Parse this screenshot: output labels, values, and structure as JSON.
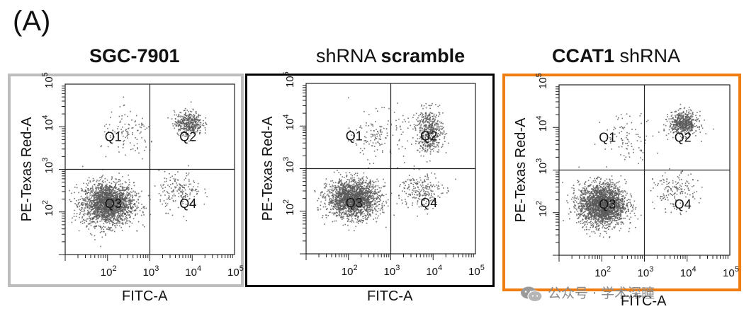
{
  "figure_label": "(A)",
  "titles": [
    {
      "bold": "SGC-7901",
      "normal": ""
    },
    {
      "bold": "scramble",
      "normal": "shRNA "
    },
    {
      "bold": "CCAT1",
      "normal": " shRNA"
    }
  ],
  "watermark": "公众号 · 学术深瞳",
  "colors": {
    "panel1_border": "#bdbdbd",
    "panel2_border": "#000000",
    "panel3_border": "#f07d12",
    "dots": "#5a5a5a"
  },
  "chart_data": [
    {
      "type": "scatter",
      "title": "SGC-7901",
      "xlabel": "FITC-A",
      "ylabel": "PE-Texas Red-A",
      "xscale": "log",
      "yscale": "log",
      "xlim": [
        10,
        100000
      ],
      "ylim": [
        10,
        100000
      ],
      "xticks": [
        "10^2",
        "10^3",
        "10^4",
        "10^5"
      ],
      "yticks": [
        "10^2",
        "10^3",
        "10^4",
        "10^5"
      ],
      "gate": {
        "x": 1000,
        "y": 1000
      },
      "quadrants": [
        "Q1",
        "Q2",
        "Q3",
        "Q4"
      ],
      "populations": [
        {
          "quadrant": "Q3",
          "center_log": [
            2.0,
            2.2
          ],
          "spread_log": [
            0.55,
            0.45
          ],
          "n": 2200
        },
        {
          "quadrant": "Q2",
          "center_log": [
            3.9,
            4.1
          ],
          "spread_log": [
            0.3,
            0.25
          ],
          "n": 420
        },
        {
          "quadrant": "Q4",
          "center_log": [
            3.7,
            2.5
          ],
          "spread_log": [
            0.45,
            0.4
          ],
          "n": 180
        },
        {
          "quadrant": "Q1",
          "center_log": [
            2.5,
            3.8
          ],
          "spread_log": [
            0.6,
            0.5
          ],
          "n": 110
        }
      ]
    },
    {
      "type": "scatter",
      "title": "shRNA scramble",
      "xlabel": "FITC-A",
      "ylabel": "PE-Texas Red-A",
      "xscale": "log",
      "yscale": "log",
      "xlim": [
        10,
        100000
      ],
      "ylim": [
        10,
        100000
      ],
      "xticks": [
        "10^2",
        "10^3",
        "10^4",
        "10^5"
      ],
      "yticks": [
        "10^2",
        "10^3",
        "10^4",
        "10^5"
      ],
      "gate": {
        "x": 1000,
        "y": 1000
      },
      "quadrants": [
        "Q1",
        "Q2",
        "Q3",
        "Q4"
      ],
      "populations": [
        {
          "quadrant": "Q3",
          "center_log": [
            2.1,
            2.3
          ],
          "spread_log": [
            0.55,
            0.4
          ],
          "n": 2000
        },
        {
          "quadrant": "Q2",
          "center_log": [
            3.9,
            3.9
          ],
          "spread_log": [
            0.3,
            0.45
          ],
          "n": 520
        },
        {
          "quadrant": "Q4",
          "center_log": [
            3.7,
            2.5
          ],
          "spread_log": [
            0.45,
            0.4
          ],
          "n": 220
        },
        {
          "quadrant": "Q1",
          "center_log": [
            2.7,
            3.8
          ],
          "spread_log": [
            0.55,
            0.5
          ],
          "n": 140
        }
      ]
    },
    {
      "type": "scatter",
      "title": "CCAT1 shRNA",
      "xlabel": "FITC-A",
      "ylabel": "PE-Texas Red-A",
      "xscale": "log",
      "yscale": "log",
      "xlim": [
        10,
        100000
      ],
      "ylim": [
        10,
        100000
      ],
      "xticks": [
        "10^2",
        "10^3",
        "10^4",
        "10^5"
      ],
      "yticks": [
        "10^2",
        "10^3",
        "10^4",
        "10^5"
      ],
      "gate": {
        "x": 1000,
        "y": 1000
      },
      "quadrants": [
        "Q1",
        "Q2",
        "Q3",
        "Q4"
      ],
      "populations": [
        {
          "quadrant": "Q3",
          "center_log": [
            2.0,
            2.2
          ],
          "spread_log": [
            0.5,
            0.45
          ],
          "n": 2300
        },
        {
          "quadrant": "Q2",
          "center_log": [
            3.9,
            4.1
          ],
          "spread_log": [
            0.3,
            0.25
          ],
          "n": 600
        },
        {
          "quadrant": "Q4",
          "center_log": [
            3.7,
            2.5
          ],
          "spread_log": [
            0.45,
            0.4
          ],
          "n": 160
        },
        {
          "quadrant": "Q1",
          "center_log": [
            2.6,
            3.8
          ],
          "spread_log": [
            0.55,
            0.5
          ],
          "n": 90
        }
      ]
    }
  ]
}
